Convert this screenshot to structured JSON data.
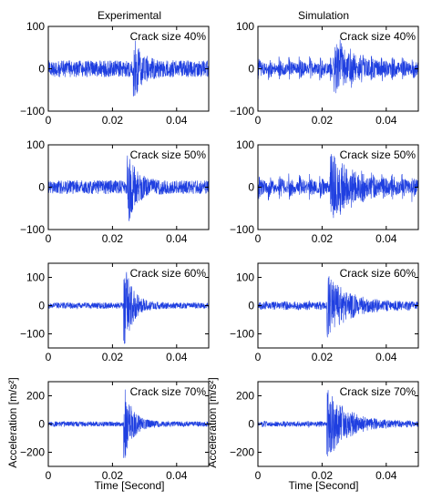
{
  "chart_data": {
    "type": "line",
    "column_titles": [
      "Experimental",
      "Simulation"
    ],
    "xlabel": "Time [Second]",
    "ylabel": "Acceleration [m/s²]",
    "line_color": "#1f3fe0",
    "panels": [
      {
        "row": 0,
        "col": 0,
        "annotation": "Crack size 40%",
        "xlim": [
          0,
          0.05
        ],
        "ylim": [
          -100,
          100
        ],
        "xticks": [
          0,
          0.02,
          0.04
        ],
        "yticks": [
          -100,
          0,
          100
        ],
        "ytick_labels": [
          "−100",
          "0",
          "100"
        ],
        "xtick_labels": [
          "0",
          "0.02",
          "0.04"
        ],
        "baseline_amp": 22,
        "peak_time": 0.027,
        "peak_amp": 55
      },
      {
        "row": 0,
        "col": 1,
        "annotation": "Crack size 40%",
        "xlim": [
          0,
          0.05
        ],
        "ylim": [
          -100,
          100
        ],
        "xticks": [
          0,
          0.02,
          0.04
        ],
        "yticks": [
          -100,
          0,
          100
        ],
        "ytick_labels": [
          "−100",
          "0",
          "100"
        ],
        "xtick_labels": [
          "0",
          "0.02",
          "0.04"
        ],
        "baseline_amp": 35,
        "peak_time": 0.024,
        "peak_amp": 55
      },
      {
        "row": 1,
        "col": 0,
        "annotation": "Crack size 50%",
        "xlim": [
          0,
          0.05
        ],
        "ylim": [
          -100,
          100
        ],
        "xticks": [
          0,
          0.02,
          0.04
        ],
        "yticks": [
          -100,
          0,
          100
        ],
        "ytick_labels": [
          "−100",
          "0",
          "100"
        ],
        "xtick_labels": [
          "0",
          "0.02",
          "0.04"
        ],
        "baseline_amp": 18,
        "peak_time": 0.025,
        "peak_amp": 80
      },
      {
        "row": 1,
        "col": 1,
        "annotation": "Crack size 50%",
        "xlim": [
          0,
          0.05
        ],
        "ylim": [
          -100,
          100
        ],
        "xticks": [
          0,
          0.02,
          0.04
        ],
        "yticks": [
          -100,
          0,
          100
        ],
        "ytick_labels": [
          "−100",
          "0",
          "100"
        ],
        "xtick_labels": [
          "0",
          "0.02",
          "0.04"
        ],
        "baseline_amp": 38,
        "peak_time": 0.023,
        "peak_amp": 75
      },
      {
        "row": 2,
        "col": 0,
        "annotation": "Crack size 60%",
        "xlim": [
          0,
          0.05
        ],
        "ylim": [
          -150,
          150
        ],
        "xticks": [
          0,
          0.02,
          0.04
        ],
        "yticks": [
          -100,
          0,
          100
        ],
        "ytick_labels": [
          "−100",
          "0",
          "100"
        ],
        "xtick_labels": [
          "0",
          "0.02",
          "0.04"
        ],
        "baseline_amp": 12,
        "peak_time": 0.024,
        "peak_amp": 150
      },
      {
        "row": 2,
        "col": 1,
        "annotation": "Crack size 60%",
        "xlim": [
          0,
          0.05
        ],
        "ylim": [
          -150,
          150
        ],
        "xticks": [
          0,
          0.02,
          0.04
        ],
        "yticks": [
          -100,
          0,
          100
        ],
        "ytick_labels": [
          "−100",
          "0",
          "100"
        ],
        "xtick_labels": [
          "0",
          "0.02",
          "0.04"
        ],
        "baseline_amp": 18,
        "peak_time": 0.022,
        "peak_amp": 110
      },
      {
        "row": 3,
        "col": 0,
        "annotation": "Crack size 70%",
        "xlim": [
          0,
          0.05
        ],
        "ylim": [
          -300,
          300
        ],
        "xticks": [
          0,
          0.02,
          0.04
        ],
        "yticks": [
          -200,
          0,
          200
        ],
        "ytick_labels": [
          "−200",
          "0",
          "200"
        ],
        "xtick_labels": [
          "0",
          "0.02",
          "0.04"
        ],
        "baseline_amp": 20,
        "peak_time": 0.024,
        "peak_amp": 260
      },
      {
        "row": 3,
        "col": 1,
        "annotation": "Crack size 70%",
        "xlim": [
          0,
          0.05
        ],
        "ylim": [
          -300,
          300
        ],
        "xticks": [
          0,
          0.02,
          0.04
        ],
        "yticks": [
          -200,
          0,
          200
        ],
        "ytick_labels": [
          "−200",
          "0",
          "200"
        ],
        "xtick_labels": [
          "0",
          "0.02",
          "0.04"
        ],
        "baseline_amp": 25,
        "peak_time": 0.022,
        "peak_amp": 250
      }
    ]
  }
}
